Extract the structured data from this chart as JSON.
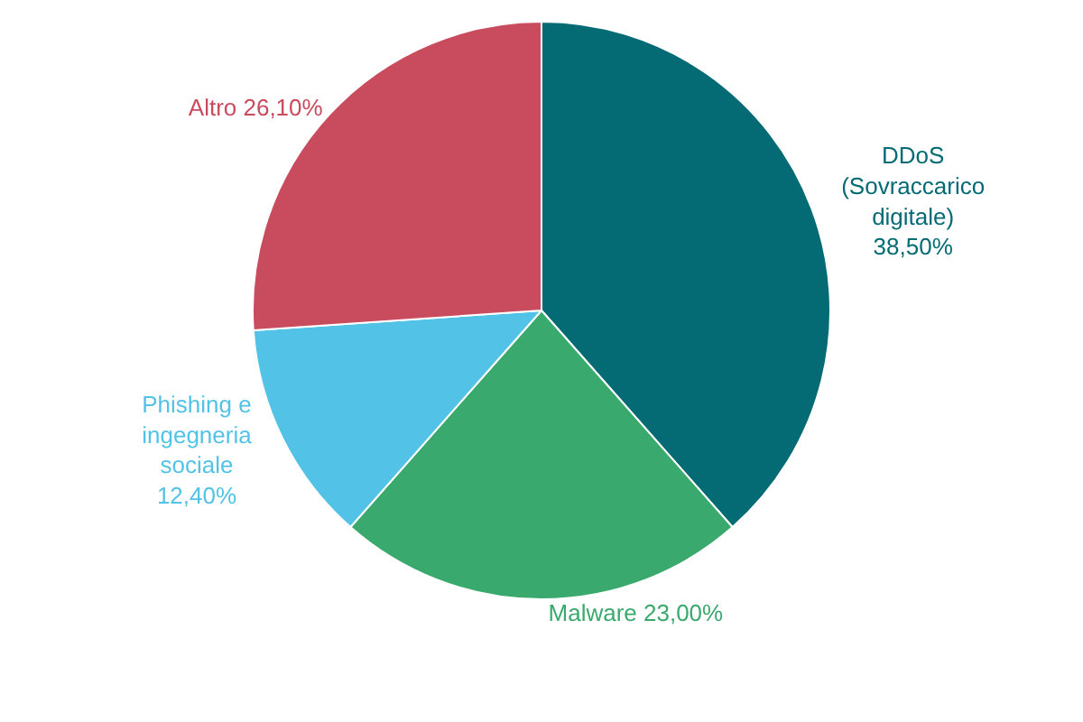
{
  "chart_data": {
    "type": "pie",
    "categories": [
      "DDoS (Sovraccarico digitale)",
      "Malware",
      "Phishing e ingegneria sociale",
      "Altro"
    ],
    "values": [
      38.5,
      23.0,
      12.4,
      26.1
    ],
    "colors": [
      "#046a74",
      "#3aa96e",
      "#52c3e6",
      "#c94b5e"
    ],
    "value_labels": [
      "38,50%",
      "23,00%",
      "12,40%",
      "26,10%"
    ]
  }
}
